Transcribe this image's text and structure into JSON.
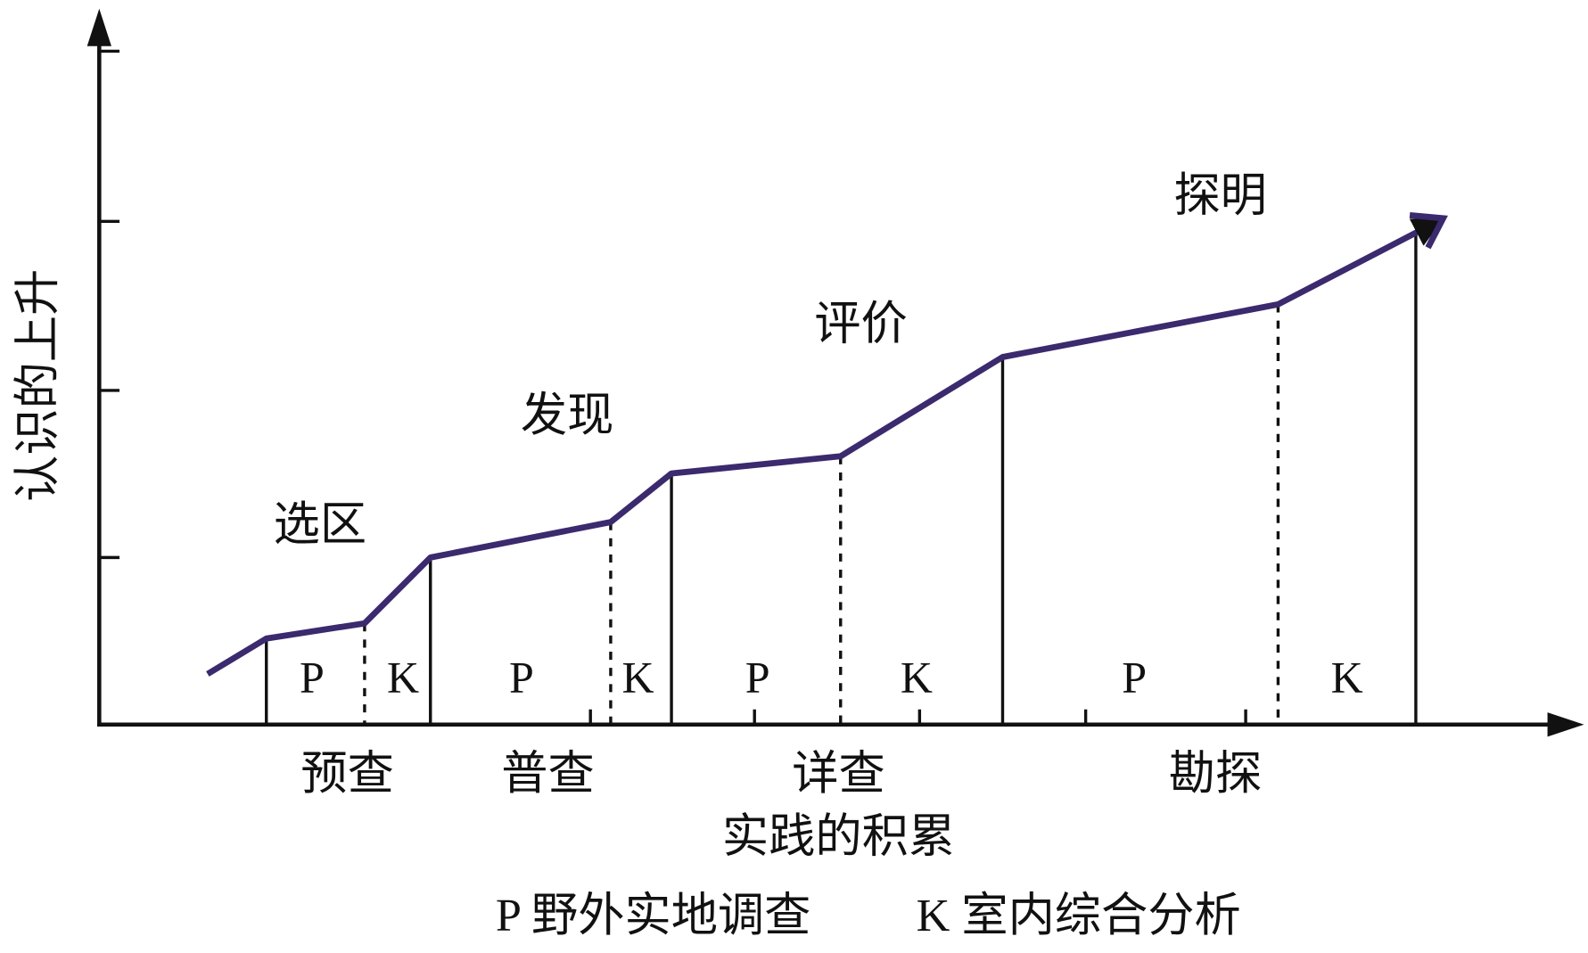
{
  "axes": {
    "y_label": "认识的上升",
    "x_label": "实践的积累"
  },
  "stages": [
    "选区",
    "发现",
    "评价",
    "探明"
  ],
  "phases": [
    "预查",
    "普查",
    "详查",
    "勘探"
  ],
  "segments": [
    "P",
    "K",
    "P",
    "K",
    "P",
    "K",
    "P",
    "K"
  ],
  "legend": [
    "P 野外实地调查",
    "K 室内综合分析"
  ]
}
